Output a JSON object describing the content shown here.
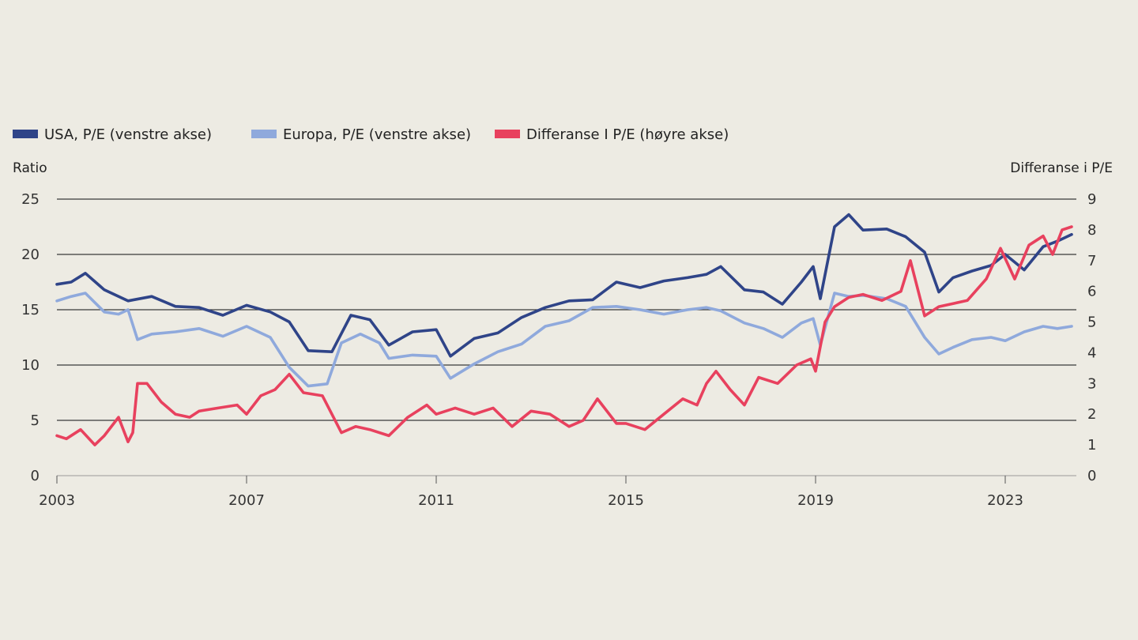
{
  "chart_data": {
    "type": "line",
    "title": "",
    "y_left_label": "Ratio",
    "y_right_label": "Differanse i P/E",
    "ylim_left": [
      0,
      25
    ],
    "ylim_right": [
      0,
      9
    ],
    "y_left_ticks": [
      "0",
      "5",
      "10",
      "15",
      "20",
      "25"
    ],
    "y_right_ticks": [
      "0",
      "1",
      "2",
      "3",
      "4",
      "5",
      "6",
      "7",
      "8",
      "9"
    ],
    "x_range": [
      2003.0,
      2024.5
    ],
    "x_ticks": [
      "2003",
      "2007",
      "2011",
      "2015",
      "2019",
      "2023"
    ],
    "grid": true,
    "legend_position": "top-left",
    "series": [
      {
        "name": "USA, P/E (venstre akse)",
        "axis": "left",
        "color": "#2f4488",
        "x": [
          2003.0,
          2003.3,
          2003.6,
          2004.0,
          2004.5,
          2005.0,
          2005.5,
          2006.0,
          2006.5,
          2007.0,
          2007.5,
          2007.9,
          2008.3,
          2008.8,
          2009.2,
          2009.6,
          2010.0,
          2010.5,
          2011.0,
          2011.3,
          2011.8,
          2012.3,
          2012.8,
          2013.3,
          2013.8,
          2014.3,
          2014.8,
          2015.3,
          2015.8,
          2016.3,
          2016.7,
          2017.0,
          2017.5,
          2017.9,
          2018.3,
          2018.7,
          2018.95,
          2019.1,
          2019.4,
          2019.7,
          2020.0,
          2020.5,
          2020.9,
          2021.3,
          2021.6,
          2021.9,
          2022.3,
          2022.7,
          2023.0,
          2023.4,
          2023.8,
          2024.1,
          2024.4
        ],
        "values": [
          17.3,
          17.5,
          18.3,
          16.8,
          15.8,
          16.2,
          15.3,
          15.2,
          14.5,
          15.4,
          14.8,
          13.9,
          11.3,
          11.2,
          14.5,
          14.1,
          11.8,
          13.0,
          13.2,
          10.8,
          12.4,
          12.9,
          14.3,
          15.2,
          15.8,
          15.9,
          17.5,
          17.0,
          17.6,
          17.9,
          18.2,
          18.9,
          16.8,
          16.6,
          15.5,
          17.5,
          18.9,
          16.0,
          22.5,
          23.6,
          22.2,
          22.3,
          21.6,
          20.2,
          16.6,
          17.9,
          18.5,
          19.0,
          20.0,
          18.6,
          20.7,
          21.2,
          21.8
        ]
      },
      {
        "name": "Europa, P/E (venstre akse)",
        "axis": "left",
        "color": "#8fa9dc",
        "x": [
          2003.0,
          2003.3,
          2003.6,
          2004.0,
          2004.3,
          2004.5,
          2004.7,
          2005.0,
          2005.5,
          2006.0,
          2006.5,
          2007.0,
          2007.5,
          2007.9,
          2008.3,
          2008.7,
          2009.0,
          2009.4,
          2009.8,
          2010.0,
          2010.5,
          2011.0,
          2011.3,
          2011.8,
          2012.3,
          2012.8,
          2013.3,
          2013.8,
          2014.3,
          2014.8,
          2015.3,
          2015.8,
          2016.3,
          2016.7,
          2017.0,
          2017.5,
          2017.9,
          2018.3,
          2018.7,
          2018.95,
          2019.1,
          2019.4,
          2019.7,
          2020.0,
          2020.5,
          2020.9,
          2021.3,
          2021.6,
          2021.9,
          2022.3,
          2022.7,
          2023.0,
          2023.4,
          2023.8,
          2024.1,
          2024.4
        ],
        "values": [
          15.8,
          16.2,
          16.5,
          14.8,
          14.6,
          15.0,
          12.3,
          12.8,
          13.0,
          13.3,
          12.6,
          13.5,
          12.5,
          9.8,
          8.1,
          8.3,
          12.0,
          12.8,
          12.0,
          10.6,
          10.9,
          10.8,
          8.8,
          10.1,
          11.2,
          11.9,
          13.5,
          14.0,
          15.2,
          15.3,
          15.0,
          14.6,
          15.0,
          15.2,
          14.9,
          13.8,
          13.3,
          12.5,
          13.8,
          14.2,
          11.8,
          16.5,
          16.2,
          16.3,
          16.0,
          15.3,
          12.5,
          11.0,
          11.6,
          12.3,
          12.5,
          12.2,
          13.0,
          13.5,
          13.3,
          13.5
        ]
      },
      {
        "name": "Differanse I P/E (høyre akse)",
        "axis": "right",
        "color": "#e8415e",
        "x": [
          2003.0,
          2003.2,
          2003.5,
          2003.8,
          2004.0,
          2004.3,
          2004.5,
          2004.6,
          2004.7,
          2004.9,
          2005.2,
          2005.5,
          2005.8,
          2006.0,
          2006.4,
          2006.8,
          2007.0,
          2007.3,
          2007.6,
          2007.9,
          2008.2,
          2008.6,
          2009.0,
          2009.3,
          2009.6,
          2010.0,
          2010.4,
          2010.8,
          2011.0,
          2011.4,
          2011.8,
          2012.2,
          2012.6,
          2013.0,
          2013.4,
          2013.8,
          2014.1,
          2014.4,
          2014.8,
          2015.0,
          2015.4,
          2015.8,
          2016.2,
          2016.5,
          2016.7,
          2016.9,
          2017.2,
          2017.5,
          2017.8,
          2018.2,
          2018.6,
          2018.9,
          2019.0,
          2019.2,
          2019.4,
          2019.7,
          2020.0,
          2020.4,
          2020.8,
          2021.0,
          2021.3,
          2021.6,
          2021.9,
          2022.2,
          2022.6,
          2022.9,
          2023.2,
          2023.5,
          2023.8,
          2024.0,
          2024.2,
          2024.4
        ],
        "values": [
          1.3,
          1.2,
          1.5,
          1.0,
          1.3,
          1.9,
          1.1,
          1.4,
          3.0,
          3.0,
          2.4,
          2.0,
          1.9,
          2.1,
          2.2,
          2.3,
          2.0,
          2.6,
          2.8,
          3.3,
          2.7,
          2.6,
          1.4,
          1.6,
          1.5,
          1.3,
          1.9,
          2.3,
          2.0,
          2.2,
          2.0,
          2.2,
          1.6,
          2.1,
          2.0,
          1.6,
          1.8,
          2.5,
          1.7,
          1.7,
          1.5,
          2.0,
          2.5,
          2.3,
          3.0,
          3.4,
          2.8,
          2.3,
          3.2,
          3.0,
          3.6,
          3.8,
          3.4,
          5.0,
          5.5,
          5.8,
          5.9,
          5.7,
          6.0,
          7.0,
          5.2,
          5.5,
          5.6,
          5.7,
          6.4,
          7.4,
          6.4,
          7.5,
          7.8,
          7.2,
          8.0,
          8.1
        ]
      }
    ]
  }
}
